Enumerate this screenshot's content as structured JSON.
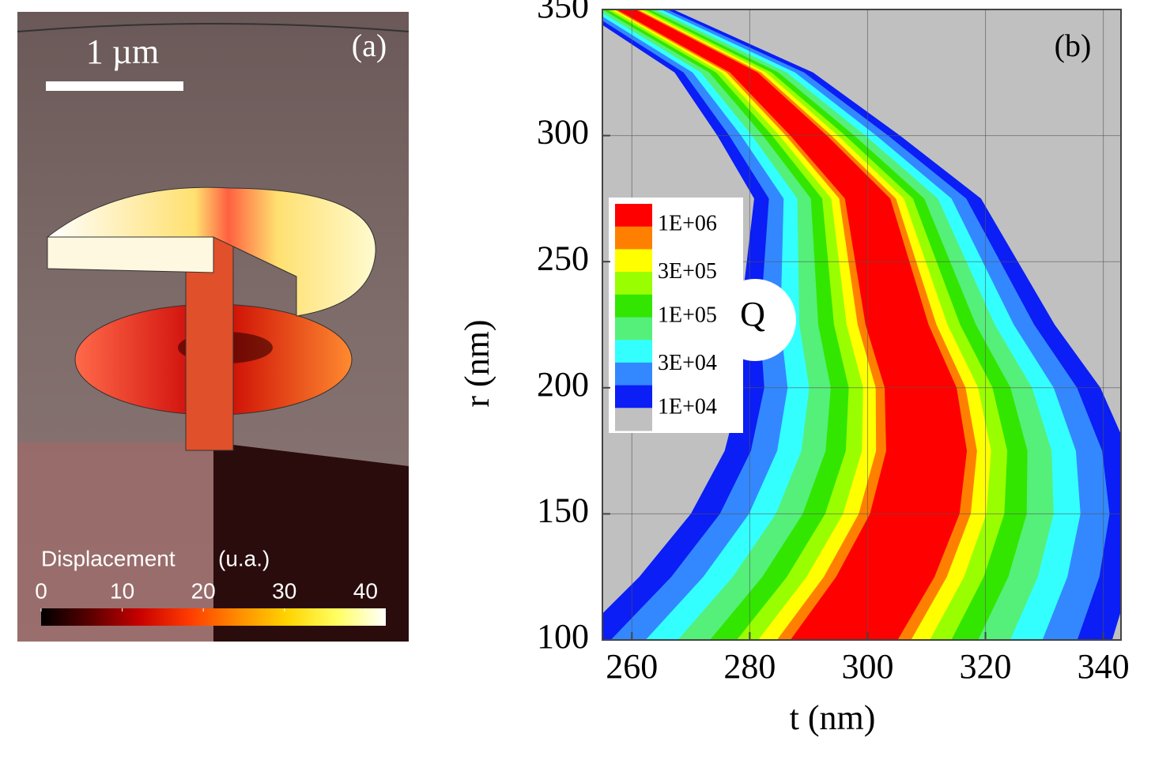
{
  "chart_data": [
    {
      "type": "image",
      "label": "(a)",
      "scale_bar": "1 µm",
      "colorbar": {
        "title": "Displacement",
        "unit": "(u.a.)",
        "lim": [
          0,
          42.5
        ],
        "ticks": [
          0,
          10,
          20,
          30,
          40
        ],
        "colors": [
          "#000000",
          "#5a0000",
          "#c80000",
          "#ff3a00",
          "#ff8c00",
          "#ffd400",
          "#ffff60",
          "#ffffff"
        ]
      }
    },
    {
      "type": "contour",
      "label": "(b)",
      "xlabel": "t (nm)",
      "ylabel": "r (nm)",
      "xlim": [
        255,
        343
      ],
      "ylim": [
        100,
        350
      ],
      "xticks": [
        260,
        280,
        300,
        320,
        340
      ],
      "yticks": [
        100,
        150,
        200,
        250,
        300,
        350
      ],
      "grid": true,
      "background": "#c0c0c0",
      "colors": [
        "#ff0000",
        "#ff8000",
        "#ffff00",
        "#99ff00",
        "#33e600",
        "#55f07a",
        "#33ffff",
        "#3388ff",
        "#0a1ef5",
        "#c0c0c0"
      ],
      "levels": [
        {
          "value": 1000000,
          "label": "1E+06"
        },
        {
          "value": 300000,
          "label": "3E+05"
        },
        {
          "value": 100000,
          "label": "1E+05"
        },
        {
          "value": 30000,
          "label": "3E+04"
        },
        {
          "value": 10000,
          "label": "1E+04"
        }
      ],
      "ridge": {
        "x": [
          296,
          303,
          308,
          310,
          309,
          305,
          300,
          290,
          279,
          267,
          259
        ],
        "y": [
          100,
          125,
          150,
          175,
          200,
          225,
          275,
          300,
          325,
          340,
          350
        ]
      },
      "annotation": "Q"
    }
  ]
}
